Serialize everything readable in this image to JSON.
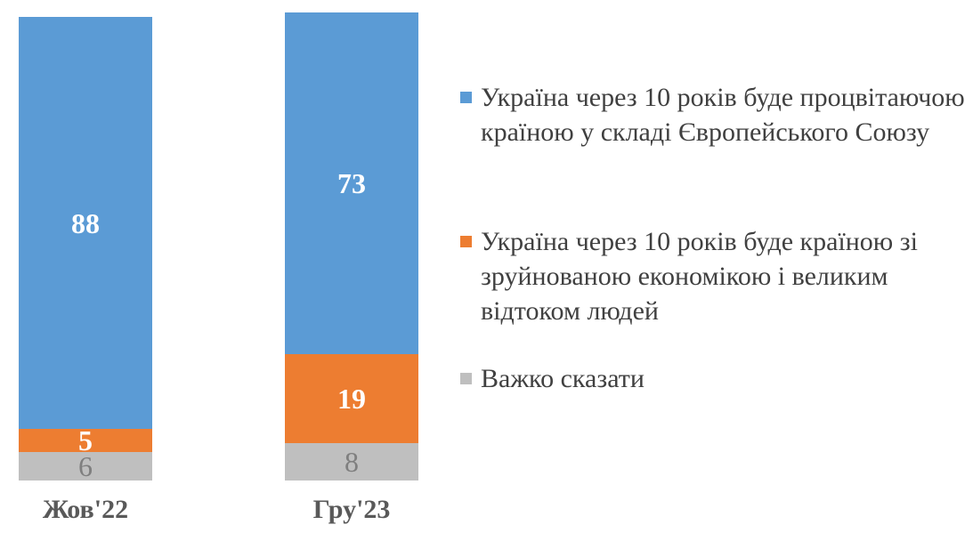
{
  "chart_data": {
    "type": "bar",
    "subtype": "stacked-column",
    "title": "",
    "xlabel": "",
    "ylabel": "",
    "ylim": [
      0,
      100
    ],
    "grid": false,
    "legend_position": "right",
    "background_color": "#FFFFFF",
    "axis_label_color": "#595959",
    "legend_text_color": "#404040",
    "categories": [
      "Жов'22",
      "Гру'23"
    ],
    "series": [
      {
        "name": "Україна через 10 років буде процвітаючою країною у складі Європейського Союзу",
        "color": "#5B9BD5",
        "label_color": "#FFFFFF",
        "label_bold": true,
        "values": [
          88,
          73
        ]
      },
      {
        "name": "Україна через 10 років буде країною зі зруйнованою економікою і великим відтоком людей",
        "color": "#ED7D31",
        "label_color": "#FFFFFF",
        "label_bold": true,
        "values": [
          5,
          19
        ]
      },
      {
        "name": "Важко сказати",
        "color": "#BFBFBF",
        "label_color": "#7F7F7F",
        "label_bold": false,
        "values": [
          6,
          8
        ]
      }
    ]
  }
}
